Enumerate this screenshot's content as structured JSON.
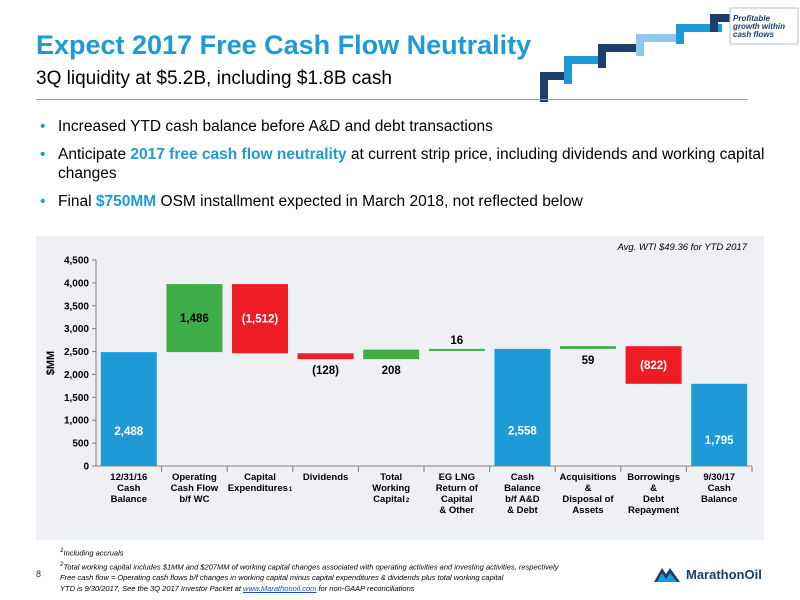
{
  "header": {
    "title": "Expect 2017 Free Cash Flow Neutrality",
    "subtitle": "3Q liquidity at $5.2B, including $1.8B cash",
    "tagline": "Profitable growth within cash flows"
  },
  "bullets": [
    {
      "parts": [
        {
          "text": "Increased YTD cash balance before A&D and debt transactions",
          "hl": false
        }
      ]
    },
    {
      "parts": [
        {
          "text": "Anticipate ",
          "hl": false
        },
        {
          "text": "2017 free cash flow neutrality",
          "hl": true
        },
        {
          "text": " at current strip price, including dividends and working capital changes",
          "hl": false
        }
      ]
    },
    {
      "parts": [
        {
          "text": "Final ",
          "hl": false
        },
        {
          "text": "$750MM",
          "hl": true
        },
        {
          "text": " OSM installment expected in March 2018, not reflected below",
          "hl": false
        }
      ]
    }
  ],
  "chart_data": {
    "type": "bar",
    "subtype": "waterfall",
    "annotation": "Avg. WTI $49.36 for YTD 2017",
    "ylabel": "$MM",
    "xlabel": "",
    "ylim": [
      0,
      4500
    ],
    "yticks": [
      0,
      500,
      1000,
      1500,
      2000,
      2500,
      3000,
      3500,
      4000,
      4500
    ],
    "ytick_labels": [
      "0",
      "500",
      "1,000",
      "1,500",
      "2,000",
      "2,500",
      "3,000",
      "3,500",
      "4,000",
      "4,500"
    ],
    "grid": false,
    "categories": [
      {
        "lines": [
          "12/31/16",
          "Cash",
          "Balance"
        ],
        "sup": ""
      },
      {
        "lines": [
          "Operating",
          "Cash Flow",
          "b/f WC"
        ],
        "sup": ""
      },
      {
        "lines": [
          "Capital",
          "Expenditures"
        ],
        "sup": "1"
      },
      {
        "lines": [
          "Dividends"
        ],
        "sup": ""
      },
      {
        "lines": [
          "Total",
          "Working",
          "Capital"
        ],
        "sup": "2"
      },
      {
        "lines": [
          "EG LNG",
          "Return of",
          "Capital",
          "& Other"
        ],
        "sup": ""
      },
      {
        "lines": [
          "Cash",
          "Balance",
          "b/f A&D",
          "& Debt"
        ],
        "sup": ""
      },
      {
        "lines": [
          "Acquisitions",
          "&",
          "Disposal of",
          "Assets"
        ],
        "sup": ""
      },
      {
        "lines": [
          "Borrowings",
          "&",
          "Debt",
          "Repayment"
        ],
        "sup": ""
      },
      {
        "lines": [
          "9/30/17",
          "Cash",
          "Balance"
        ],
        "sup": ""
      }
    ],
    "bars": [
      {
        "start": 0,
        "end": 2488,
        "value_label": "2,488",
        "kind": "total",
        "label_pos": "inside-low"
      },
      {
        "start": 2488,
        "end": 3974,
        "value_label": "1,486",
        "kind": "increase",
        "label_pos": "inside"
      },
      {
        "start": 3974,
        "end": 2462,
        "value_label": "(1,512)",
        "kind": "decrease",
        "label_pos": "inside"
      },
      {
        "start": 2462,
        "end": 2334,
        "value_label": "(128)",
        "kind": "decrease",
        "label_pos": "below"
      },
      {
        "start": 2334,
        "end": 2542,
        "value_label": "208",
        "kind": "increase",
        "label_pos": "below"
      },
      {
        "start": 2542,
        "end": 2558,
        "value_label": "16",
        "kind": "increase",
        "label_pos": "above"
      },
      {
        "start": 0,
        "end": 2558,
        "value_label": "2,558",
        "kind": "total",
        "label_pos": "inside-low"
      },
      {
        "start": 2558,
        "end": 2617,
        "value_label": "59",
        "kind": "increase",
        "label_pos": "below"
      },
      {
        "start": 2617,
        "end": 1795,
        "value_label": "(822)",
        "kind": "decrease",
        "label_pos": "inside"
      },
      {
        "start": 0,
        "end": 1795,
        "value_label": "1,795",
        "kind": "total",
        "label_pos": "inside-low"
      }
    ],
    "colors": {
      "total": "#1e9bd7",
      "increase": "#3fae49",
      "decrease": "#ee1c25"
    }
  },
  "footnotes": {
    "note1": "Including accruals",
    "note1_mark": "1",
    "note2": "Total working capital includes $1MM and $207MM of working capital changes associated with operating activities and investing activities, respectively",
    "note2_mark": "2",
    "note3": "Free cash flow = Operating cash flows b/f changes in working capital minus capital expenditures & dividends plus total working capital",
    "note4_pre": "YTD is 9/30/2017, See the 3Q 2017 Investor Packet at ",
    "note4_link": "www.Marathonoil.com",
    "note4_post": " for non-GAAP reconciliations"
  },
  "page_number": "8",
  "logo": {
    "text": "MarathonOil"
  }
}
